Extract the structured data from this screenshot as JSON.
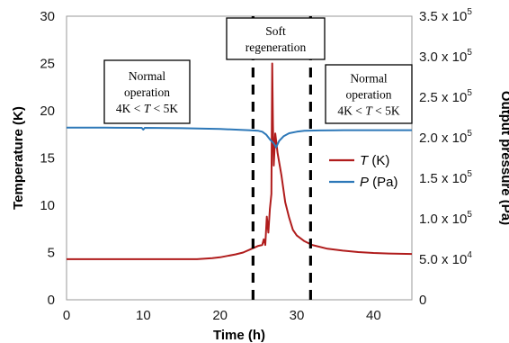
{
  "chart_data": {
    "type": "line",
    "xlabel": "Time (h)",
    "ylabel_left": "Temperature (K)",
    "ylabel_right": "Output pressure (Pa)",
    "xlim": [
      0,
      45
    ],
    "ylim_left": [
      0,
      30
    ],
    "ylim_right": [
      0,
      350000
    ],
    "x_ticks": [
      "0",
      "10",
      "20",
      "30",
      "40"
    ],
    "y_left_ticks": [
      "0",
      "5",
      "10",
      "15",
      "20",
      "25",
      "30"
    ],
    "y_right_ticks": [
      {
        "value": 0,
        "mant": "0",
        "exp": ""
      },
      {
        "value": 50000,
        "mant": "5.0 x 10",
        "exp": "4"
      },
      {
        "value": 100000,
        "mant": "1.0 x 10",
        "exp": "5"
      },
      {
        "value": 150000,
        "mant": "1.5 x 10",
        "exp": "5"
      },
      {
        "value": 200000,
        "mant": "2.0 x 10",
        "exp": "5"
      },
      {
        "value": 250000,
        "mant": "2.5 x 10",
        "exp": "5"
      },
      {
        "value": 300000,
        "mant": "3.0 x 10",
        "exp": "5"
      },
      {
        "value": 350000,
        "mant": "3.5 x 10",
        "exp": "5"
      }
    ],
    "vlines": [
      24.3,
      31.8
    ],
    "series": [
      {
        "name": "T (K)",
        "var": "T",
        "unit": "(K)",
        "axis": "left",
        "color": "#b01c1c",
        "x": [
          0,
          5,
          10,
          15,
          17,
          19,
          20,
          21,
          22,
          23,
          24,
          25,
          25.5,
          25.7,
          25.9,
          26.1,
          26.3,
          26.5,
          26.7,
          26.8,
          26.9,
          27.0,
          27.2,
          27.5,
          28,
          28.5,
          29,
          29.5,
          30,
          31,
          32,
          34,
          36,
          38,
          40,
          42,
          45
        ],
        "y": [
          4.3,
          4.3,
          4.3,
          4.3,
          4.3,
          4.4,
          4.5,
          4.65,
          4.8,
          5.0,
          5.35,
          5.7,
          5.8,
          6.4,
          5.8,
          8.8,
          7.1,
          9.6,
          11.2,
          25.0,
          18.6,
          14.2,
          17.6,
          15.5,
          13.2,
          10.3,
          8.7,
          7.4,
          6.8,
          6.2,
          5.8,
          5.4,
          5.2,
          5.05,
          4.95,
          4.9,
          4.85
        ]
      },
      {
        "name": "P (Pa)",
        "var": "P",
        "unit": "(Pa)",
        "axis": "right",
        "color": "#2d78b8",
        "x": [
          0,
          5,
          9.8,
          10,
          10.2,
          15,
          20,
          24,
          25,
          25.5,
          26,
          26.5,
          27,
          27.3,
          27.7,
          28.3,
          29,
          30,
          31,
          33,
          35,
          40,
          45
        ],
        "y": [
          212500,
          212500,
          212200,
          210000,
          212200,
          211800,
          210800,
          209200,
          208500,
          207500,
          204000,
          198000,
          193000,
          188000,
          196000,
          202000,
          205500,
          207500,
          208500,
          209000,
          209200,
          209300,
          209300
        ]
      }
    ],
    "annotations": [
      {
        "lines": [
          "Normal",
          "operation"
        ],
        "formula": {
          "a": "4K < ",
          "v": "T",
          "b": " < 5K"
        }
      },
      {
        "lines": [
          "Soft",
          "regeneration"
        ]
      },
      {
        "lines": [
          "Normal",
          "operation"
        ],
        "formula": {
          "a": "4K < ",
          "v": "T",
          "b": " < 5K"
        }
      }
    ],
    "legend_position": "right"
  }
}
